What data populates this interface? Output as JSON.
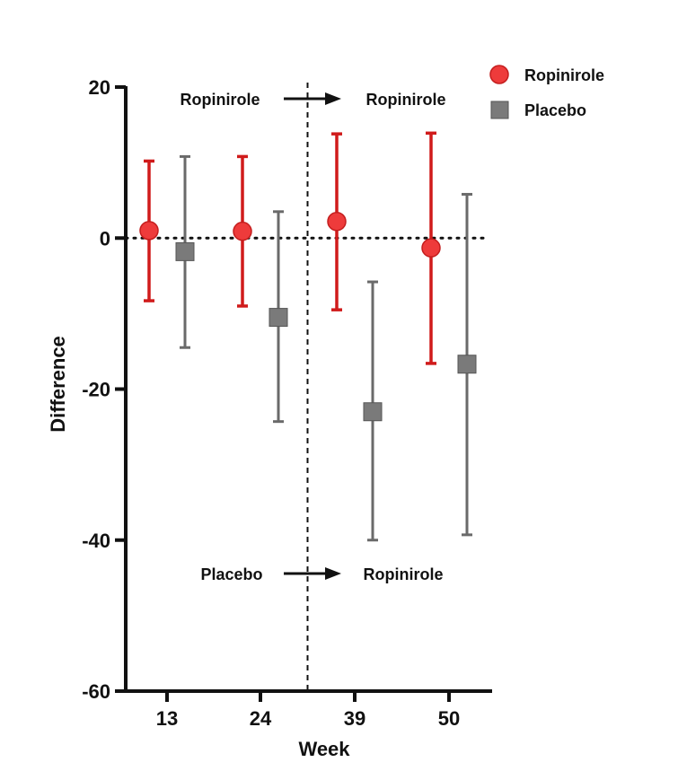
{
  "chart_data": {
    "type": "scatter",
    "xlabel": "Week",
    "ylabel": "Difference",
    "ylim": [
      -60,
      20
    ],
    "yticks": [
      20,
      0,
      -20,
      -40,
      -60
    ],
    "categories": [
      "13",
      "24",
      "39",
      "50"
    ],
    "reference_line": 0,
    "switch_after_category": "24",
    "series": [
      {
        "name": "Ropinirole",
        "marker": "circle",
        "color": "#ee3b3b",
        "errorbar_color": "#d01b1b",
        "points": [
          {
            "category": "13",
            "mean": 1.0,
            "lower": -8.3,
            "upper": 10.2
          },
          {
            "category": "24",
            "mean": 0.9,
            "lower": -9.0,
            "upper": 10.8
          },
          {
            "category": "39",
            "mean": 2.2,
            "lower": -9.5,
            "upper": 13.8
          },
          {
            "category": "50",
            "mean": -1.3,
            "lower": -16.6,
            "upper": 13.9
          }
        ]
      },
      {
        "name": "Placebo",
        "marker": "square",
        "color": "#7a7a7a",
        "errorbar_color": "#6a6a6a",
        "points": [
          {
            "category": "13",
            "mean": -1.8,
            "lower": -14.5,
            "upper": 10.8
          },
          {
            "category": "24",
            "mean": -10.5,
            "lower": -24.3,
            "upper": 3.5
          },
          {
            "category": "39",
            "mean": -23.0,
            "lower": -40.0,
            "upper": -5.8
          },
          {
            "category": "50",
            "mean": -16.7,
            "lower": -39.3,
            "upper": 5.8
          }
        ]
      }
    ],
    "annotations": {
      "top_from": "Ropinirole",
      "top_to": "Ropinirole",
      "bottom_from": "Placebo",
      "bottom_to": "Ropinirole"
    },
    "legend": [
      "Ropinirole",
      "Placebo"
    ],
    "legend_position": "top-right"
  }
}
